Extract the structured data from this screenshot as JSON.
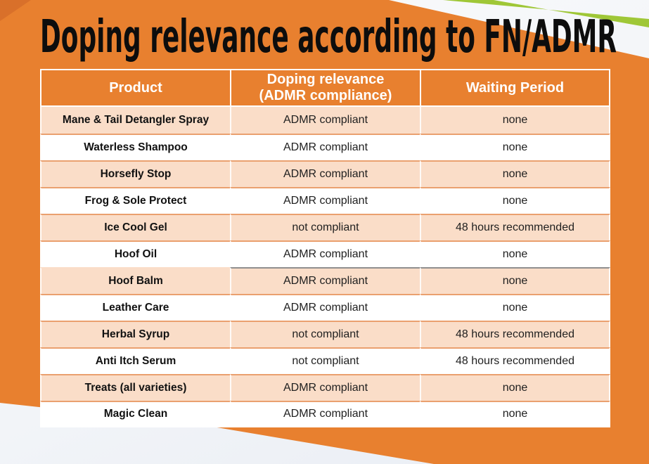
{
  "title": "Doping relevance according to FN/ADMR",
  "table": {
    "headers": [
      "Product",
      "Doping relevance\n(ADMR compliance)",
      "Waiting Period"
    ],
    "rows": [
      {
        "product": "Mane & Tail Detangler Spray",
        "relevance": "ADMR compliant",
        "waiting": "none"
      },
      {
        "product": "Waterless Shampoo",
        "relevance": "ADMR compliant",
        "waiting": "none"
      },
      {
        "product": "Horsefly Stop",
        "relevance": "ADMR compliant",
        "waiting": "none"
      },
      {
        "product": "Frog & Sole Protect",
        "relevance": "ADMR compliant",
        "waiting": "none"
      },
      {
        "product": "Ice Cool Gel",
        "relevance": "not compliant",
        "waiting": "48 hours recommended"
      },
      {
        "product": "Hoof Oil",
        "relevance": "ADMR compliant",
        "waiting": "none"
      },
      {
        "product": "Hoof Balm",
        "relevance": "ADMR compliant",
        "waiting": "none"
      },
      {
        "product": "Leather Care",
        "relevance": "ADMR compliant",
        "waiting": "none"
      },
      {
        "product": "Herbal Syrup",
        "relevance": "not compliant",
        "waiting": "48 hours recommended"
      },
      {
        "product": "Anti Itch Serum",
        "relevance": "not compliant",
        "waiting": "48 hours recommended"
      },
      {
        "product": "Treats (all varieties)",
        "relevance": "ADMR compliant",
        "waiting": "none"
      },
      {
        "product": "Magic Clean",
        "relevance": "ADMR compliant",
        "waiting": "none"
      }
    ]
  },
  "colors": {
    "background_orange": "#E8802F",
    "corner_dark_orange": "#D9702A",
    "row_peach": "#FADDC8",
    "row_white": "#FFFFFF",
    "accent_green": "#9FC737",
    "row_separator_orange": "#EAA06F",
    "special_separator_gray": "#8F8F8F",
    "title_black": "#0D0D0D",
    "header_text": "#FFFFFF",
    "background_light": "#EDF1F6"
  }
}
